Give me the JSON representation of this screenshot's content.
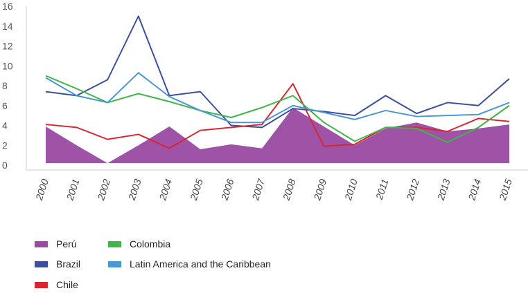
{
  "chart_data": {
    "type": "line",
    "title": "",
    "xlabel": "",
    "ylabel": "",
    "ylim": [
      0,
      16
    ],
    "yticks": [
      0,
      2,
      4,
      6,
      8,
      10,
      12,
      14,
      16
    ],
    "x": [
      "2000",
      "2001",
      "2002",
      "2003",
      "2004",
      "2005",
      "2006",
      "2007",
      "2008",
      "2009",
      "2010",
      "2011",
      "2012",
      "2013",
      "2014",
      "2015"
    ],
    "legend_position": "bottom-left",
    "series": [
      {
        "name": "Perú",
        "style": "area",
        "color": "#9a4aa1",
        "values": [
          3.9,
          2.0,
          0.2,
          2.0,
          3.9,
          1.6,
          2.1,
          1.7,
          5.8,
          3.9,
          2.0,
          3.7,
          4.3,
          3.4,
          3.7,
          4.1
        ]
      },
      {
        "name": "Brazil",
        "style": "line",
        "color": "#3b4ea0",
        "values": [
          7.4,
          7.0,
          8.6,
          15.0,
          7.0,
          7.4,
          4.0,
          3.8,
          5.7,
          5.4,
          5.0,
          7.0,
          5.2,
          6.3,
          6.0,
          8.7
        ]
      },
      {
        "name": "Chile",
        "style": "line",
        "color": "#d9262e",
        "values": [
          4.1,
          3.8,
          2.6,
          3.1,
          1.7,
          3.5,
          3.8,
          4.1,
          8.2,
          1.9,
          2.1,
          3.8,
          3.8,
          3.4,
          4.7,
          4.4
        ]
      },
      {
        "name": "Colombia",
        "style": "line",
        "color": "#3fb54a",
        "values": [
          9.0,
          7.7,
          6.3,
          7.2,
          6.4,
          5.5,
          4.8,
          5.8,
          7.0,
          4.3,
          2.4,
          3.8,
          3.7,
          2.3,
          3.8,
          6.0
        ]
      },
      {
        "name": "Latin America and the Caribbean",
        "style": "line",
        "color": "#4a97d2",
        "values": [
          8.8,
          7.0,
          6.3,
          9.3,
          6.9,
          5.5,
          4.3,
          4.3,
          6.0,
          5.3,
          4.6,
          5.5,
          4.9,
          5.0,
          5.1,
          6.3
        ]
      }
    ]
  }
}
